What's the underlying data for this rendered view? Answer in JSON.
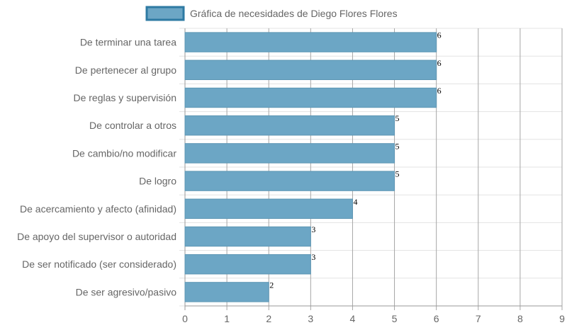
{
  "chart_data": {
    "type": "bar",
    "orientation": "horizontal",
    "categories": [
      "De terminar una tarea",
      "De pertenecer al grupo",
      "De reglas y supervisión",
      "De controlar a otros",
      "De cambio/no modificar",
      "De logro",
      "De acercamiento y afecto (afinidad)",
      "De apoyo del supervisor o autoridad",
      "De ser notificado (ser considerado)",
      "De ser agresivo/pasivo"
    ],
    "series": [
      {
        "name": "Gráfica de necesidades de Diego Flores Flores",
        "values": [
          6,
          6,
          6,
          5,
          5,
          5,
          4,
          3,
          3,
          2
        ],
        "color": "#6ca6c5",
        "border_color": "#2e7aa3"
      }
    ],
    "xlim": [
      0,
      9
    ],
    "x_ticks": [
      "0",
      "1",
      "2",
      "3",
      "4",
      "5",
      "6",
      "7",
      "8",
      "9"
    ],
    "grid": true,
    "legend_position": "top",
    "data_labels": [
      "6",
      "6",
      "6",
      "5",
      "5",
      "5",
      "4",
      "3",
      "3",
      "2"
    ]
  }
}
